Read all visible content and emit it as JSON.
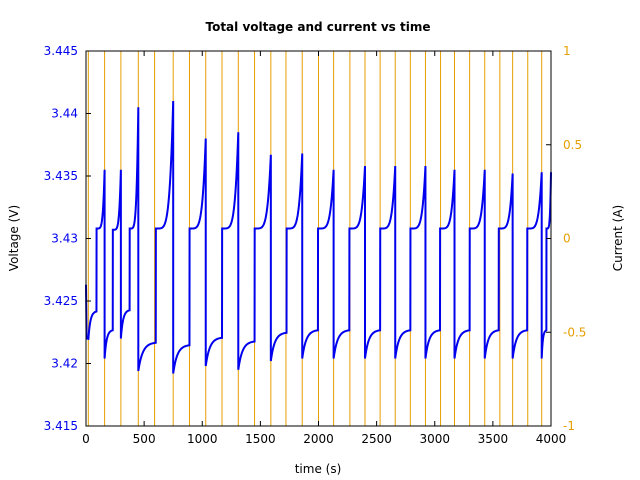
{
  "chart_data": {
    "type": "line",
    "title": "Total voltage and current vs time",
    "xlabel": "time (s)",
    "ylabel_left": "Voltage (V)",
    "ylabel_right": "Current (A)",
    "xlim": [
      0,
      4000
    ],
    "ylim_left": [
      3.415,
      3.445
    ],
    "ylim_right": [
      -1,
      1
    ],
    "xticks": [
      "0",
      "500",
      "1000",
      "1500",
      "2000",
      "2500",
      "3000",
      "3500",
      "4000"
    ],
    "yticks_left": [
      "3.415",
      "3.42",
      "3.425",
      "3.43",
      "3.435",
      "3.44",
      "3.445"
    ],
    "yticks_right": [
      "-1",
      "-0.5",
      "0",
      "0.5",
      "1"
    ],
    "grid": false,
    "colors": {
      "voltage": "#0000ee",
      "current": "#e69f00",
      "left_axis": "#0000ee",
      "right_axis": "#e69f00"
    },
    "series": [
      {
        "axis": "left",
        "pulses": [
          {
            "start": 20,
            "end": 160,
            "v_rest": 3.4219,
            "v_plateau": 3.4308,
            "v_peak": 3.4355
          },
          {
            "start": 160,
            "end": 300,
            "v_rest": 3.4204,
            "v_plateau": 3.4307,
            "v_peak": 3.4355
          },
          {
            "start": 300,
            "end": 450,
            "v_rest": 3.422,
            "v_plateau": 3.4308,
            "v_peak": 3.4405
          },
          {
            "start": 450,
            "end": 750,
            "v_rest": 3.4194,
            "v_plateau": 3.4308,
            "v_peak": 3.441
          },
          {
            "start": 750,
            "end": 1030,
            "v_rest": 3.4192,
            "v_plateau": 3.4308,
            "v_peak": 3.438
          },
          {
            "start": 1030,
            "end": 1310,
            "v_rest": 3.4198,
            "v_plateau": 3.4308,
            "v_peak": 3.4385
          },
          {
            "start": 1310,
            "end": 1590,
            "v_rest": 3.4195,
            "v_plateau": 3.4308,
            "v_peak": 3.4367
          },
          {
            "start": 1590,
            "end": 1860,
            "v_rest": 3.4202,
            "v_plateau": 3.4308,
            "v_peak": 3.4368
          },
          {
            "start": 1860,
            "end": 2130,
            "v_rest": 3.4204,
            "v_plateau": 3.4308,
            "v_peak": 3.4355
          },
          {
            "start": 2130,
            "end": 2400,
            "v_rest": 3.4204,
            "v_plateau": 3.4308,
            "v_peak": 3.4358
          },
          {
            "start": 2400,
            "end": 2660,
            "v_rest": 3.4204,
            "v_plateau": 3.4308,
            "v_peak": 3.4358
          },
          {
            "start": 2660,
            "end": 2920,
            "v_rest": 3.4204,
            "v_plateau": 3.4308,
            "v_peak": 3.4358
          },
          {
            "start": 2920,
            "end": 3170,
            "v_rest": 3.4204,
            "v_plateau": 3.4308,
            "v_peak": 3.4355
          },
          {
            "start": 3170,
            "end": 3430,
            "v_rest": 3.4204,
            "v_plateau": 3.4308,
            "v_peak": 3.4355
          },
          {
            "start": 3430,
            "end": 3670,
            "v_rest": 3.4204,
            "v_plateau": 3.4308,
            "v_peak": 3.4352
          },
          {
            "start": 3670,
            "end": 3920,
            "v_rest": 3.4204,
            "v_plateau": 3.4308,
            "v_peak": 3.4353
          },
          {
            "start": 3920,
            "end": 4000,
            "v_rest": 3.4204,
            "v_plateau": 3.4308,
            "v_peak": 3.4353
          }
        ],
        "initial": {
          "x": [
            0,
            5,
            20
          ],
          "y": [
            3.4263,
            3.422,
            3.422
          ]
        }
      },
      {
        "axis": "right",
        "switch_times": [
          20,
          160,
          300,
          450,
          590,
          750,
          890,
          1030,
          1170,
          1310,
          1450,
          1590,
          1720,
          1860,
          2000,
          2130,
          2270,
          2400,
          2530,
          2660,
          2790,
          2920,
          3050,
          3170,
          3300,
          3430,
          3560,
          3670,
          3800,
          3920
        ],
        "levels": [
          -1,
          1
        ]
      }
    ]
  }
}
